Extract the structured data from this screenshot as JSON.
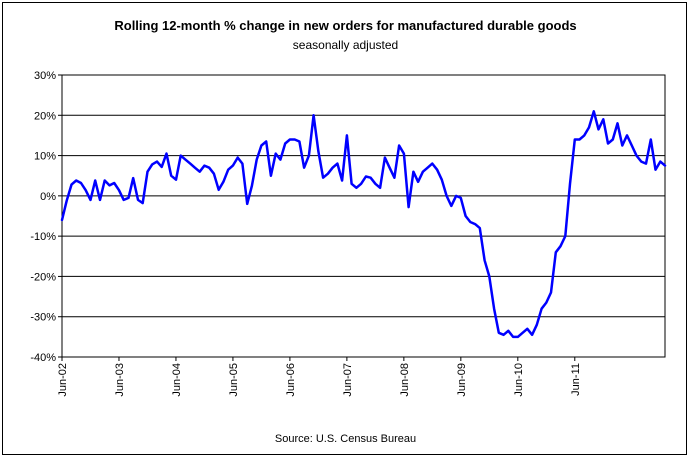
{
  "chart_data": {
    "type": "line",
    "title": "Rolling 12-month %  change in new orders for manufactured durable goods",
    "subtitle": "seasonally adjusted",
    "source": "Source: U.S. Census Bureau",
    "xlabel": "",
    "ylabel": "",
    "ylim": [
      -40,
      30
    ],
    "yticks": [
      30,
      20,
      10,
      0,
      -10,
      -20,
      -30,
      -40
    ],
    "ytick_labels": [
      "30%",
      "20%",
      "10%",
      "0%",
      "-10%",
      "-20%",
      "-30%",
      "-40%"
    ],
    "xtick_labels": [
      "Jun-02",
      "Jun-03",
      "Jun-04",
      "Jun-05",
      "Jun-06",
      "Jun-07",
      "Jun-08",
      "Jun-09",
      "Jun-10",
      "Jun-11"
    ],
    "grid": "horizontal",
    "line_color": "#0000ff",
    "start_period": "Jun-02",
    "frequency": "monthly",
    "series": [
      {
        "values": [
          -6,
          -1.2,
          2.8,
          3.8,
          3.2,
          1.4,
          -1,
          3.8,
          -1,
          3.8,
          2.6,
          3.2,
          1.4,
          -1,
          -0.5,
          4.4,
          -1,
          -1.8,
          6,
          7.8,
          8.5,
          7.2,
          10.5,
          5,
          4,
          10,
          9,
          8,
          7,
          6,
          7.5,
          7,
          5.5,
          1.5,
          3.5,
          6.5,
          7.5,
          9.5,
          8,
          -2,
          2.5,
          9,
          12.5,
          13.5,
          5,
          10.5,
          9,
          13,
          14,
          14,
          13.5,
          7,
          10,
          20,
          11,
          4.5,
          5.5,
          7,
          8,
          3.8,
          15,
          3,
          2,
          3,
          4.8,
          4.5,
          3,
          2,
          9.5,
          7,
          4.5,
          12.5,
          10.5,
          -2.8,
          6,
          3.5,
          6,
          7,
          8,
          6.5,
          4,
          0,
          -2.5,
          0,
          -0.5,
          -5,
          -6.5,
          -7,
          -8,
          -16,
          -20,
          -28,
          -34,
          -34.5,
          -33.5,
          -35,
          -35,
          -34,
          -33,
          -34.5,
          -32,
          -28,
          -26.5,
          -24,
          -14,
          -12.5,
          -10,
          3,
          14,
          14,
          15,
          17,
          21,
          16.5,
          19,
          13,
          14,
          18,
          12.5,
          15,
          12.5,
          10,
          8.5,
          8,
          14,
          6.5,
          8.5,
          7.5
        ]
      }
    ]
  }
}
